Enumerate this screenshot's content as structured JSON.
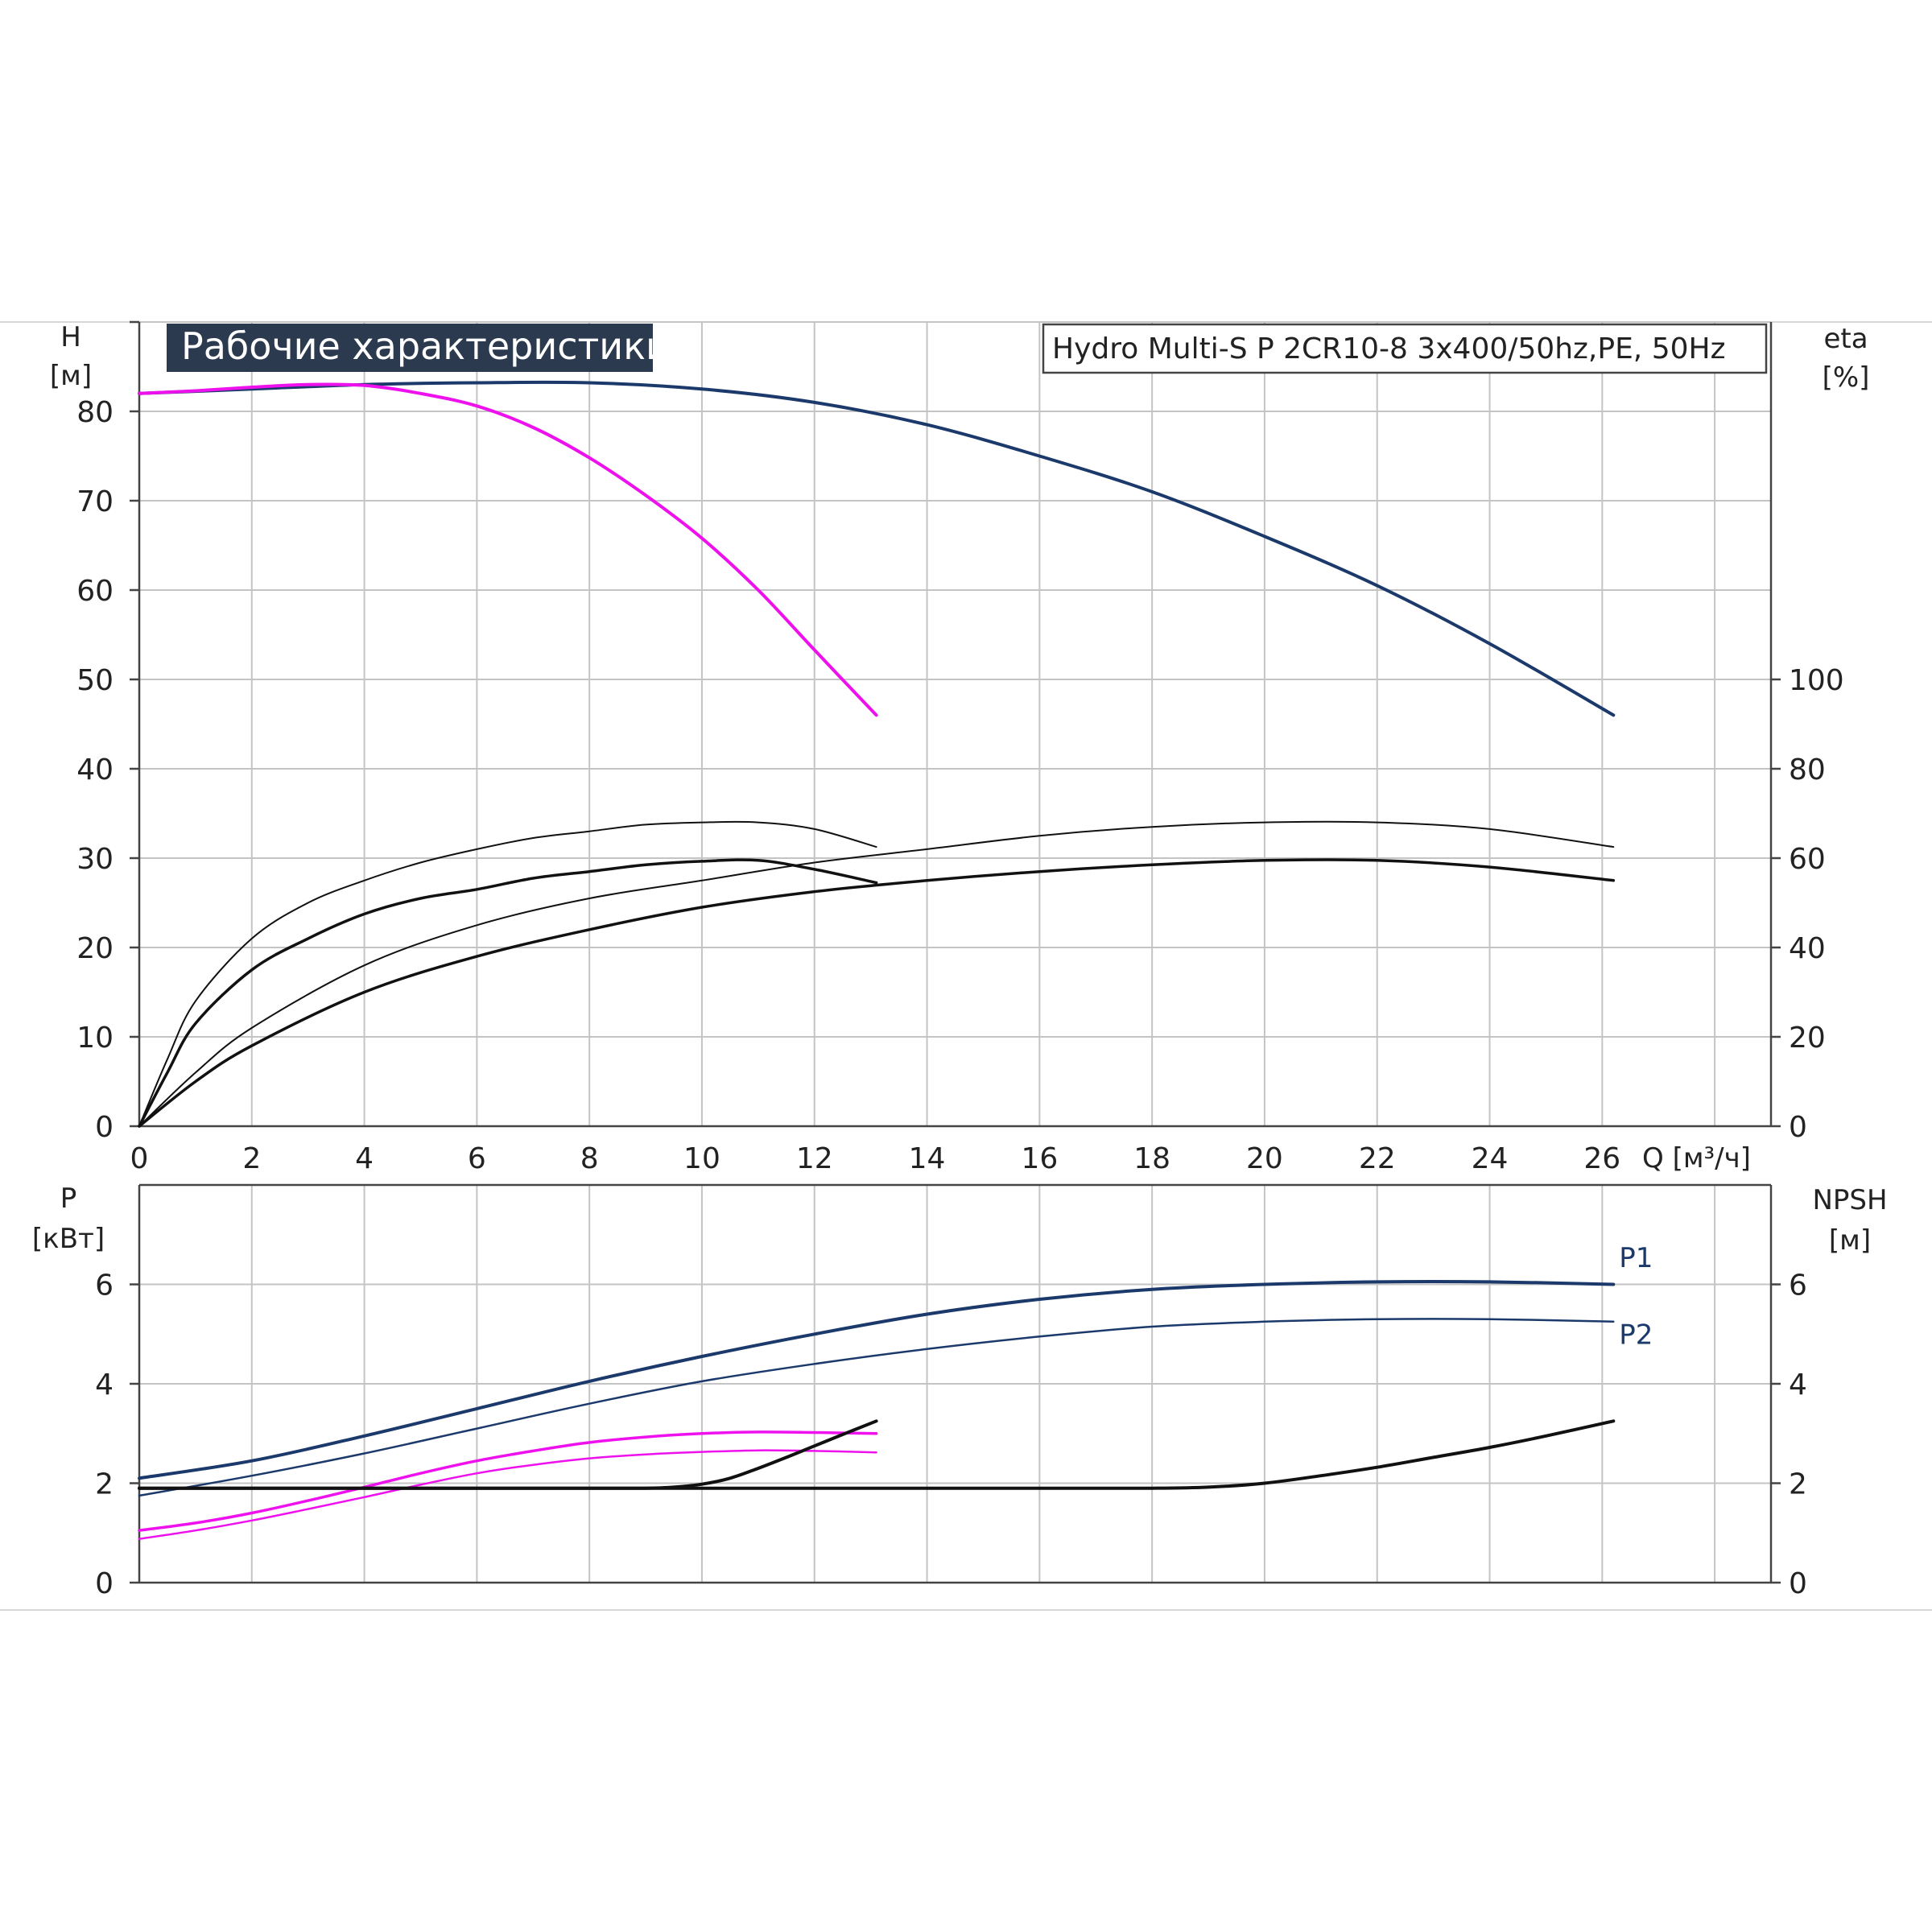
{
  "chart_data": [
    {
      "type": "line",
      "title": "Рабочие характеристики",
      "subtitle": "Hydro Multi-S P 2CR10-8 3x400/50hz,PE, 50Hz",
      "x_axis": {
        "label": "Q [м³/ч]",
        "range": [
          0,
          29
        ],
        "ticks": [
          "0",
          "2",
          "4",
          "6",
          "8",
          "10",
          "12",
          "14",
          "16",
          "18",
          "20",
          "22",
          "24",
          "26"
        ]
      },
      "y_left": {
        "label_line1": "H",
        "label_line2": "[м]",
        "range": [
          0,
          90
        ],
        "ticks": [
          "0",
          "10",
          "20",
          "30",
          "40",
          "50",
          "60",
          "70",
          "80"
        ]
      },
      "y_right": {
        "label_line1": "eta",
        "label_line2": "[%]",
        "range": [
          0,
          180
        ],
        "ticks": [
          "0",
          "20",
          "40",
          "60",
          "80",
          "100"
        ]
      },
      "grid": true,
      "series": [
        {
          "axis": "left",
          "color": "#1b3a6b",
          "width": 4,
          "x": [
            0,
            2,
            4,
            6,
            8,
            10,
            12,
            14,
            16,
            18,
            20,
            22,
            24,
            26.2
          ],
          "y": [
            82,
            82.5,
            83,
            83.2,
            83.2,
            82.5,
            81,
            78.5,
            75,
            71,
            66,
            60.5,
            54,
            46
          ]
        },
        {
          "axis": "left",
          "color": "#ee11ee",
          "width": 4,
          "x": [
            0,
            1,
            2,
            3,
            4,
            5,
            6,
            7,
            8,
            9,
            10,
            11,
            12,
            13.1
          ],
          "y": [
            82,
            82.3,
            82.7,
            83,
            82.9,
            82,
            80.6,
            78.2,
            74.8,
            70.6,
            65.8,
            60,
            53.3,
            46
          ]
        },
        {
          "axis": "right",
          "color": "#111111",
          "width": 2,
          "x": [
            0,
            0.5,
            1,
            2,
            3,
            4,
            5,
            6,
            7,
            8,
            9,
            10,
            11,
            12,
            13.1
          ],
          "y": [
            0,
            15,
            28,
            42,
            50,
            55,
            59,
            62,
            64.5,
            66,
            67.5,
            68,
            68,
            66.5,
            62.5
          ]
        },
        {
          "axis": "right",
          "color": "#111111",
          "width": 3.5,
          "x": [
            0,
            0.5,
            1,
            2,
            3,
            4,
            5,
            6,
            7,
            8,
            9,
            10,
            11,
            12,
            13.1
          ],
          "y": [
            0,
            12,
            23,
            35,
            42,
            47.5,
            51,
            53,
            55.5,
            57,
            58.5,
            59.3,
            59.5,
            57.5,
            54.5
          ]
        },
        {
          "axis": "right",
          "color": "#111111",
          "width": 2,
          "x": [
            0,
            1,
            2,
            4,
            6,
            8,
            10,
            12,
            14,
            16,
            18,
            20,
            22,
            24,
            26.2
          ],
          "y": [
            0,
            12,
            22,
            36,
            45,
            51,
            55,
            59,
            62,
            65,
            67,
            68,
            68,
            66.5,
            62.5
          ]
        },
        {
          "axis": "right",
          "color": "#111111",
          "width": 3.5,
          "x": [
            0,
            1,
            2,
            4,
            6,
            8,
            10,
            12,
            14,
            16,
            18,
            20,
            22,
            24,
            26.2
          ],
          "y": [
            0,
            10,
            18,
            30,
            38,
            44,
            49,
            52.5,
            55,
            57,
            58.5,
            59.5,
            59.5,
            58,
            55
          ]
        }
      ]
    },
    {
      "type": "line",
      "x_axis": {
        "range": [
          0,
          29
        ]
      },
      "y_left": {
        "label_line1": "P",
        "label_line2": "[кВт]",
        "range": [
          0,
          8
        ],
        "ticks": [
          "0",
          "2",
          "4",
          "6"
        ]
      },
      "y_right": {
        "label_line1": "NPSH",
        "label_line2": "[м]",
        "range": [
          0,
          8
        ],
        "ticks": [
          "0",
          "2",
          "4",
          "6"
        ]
      },
      "grid": true,
      "annotations": [
        {
          "text": "P1",
          "x": 26.3,
          "y": 6.35
        },
        {
          "text": "P2",
          "x": 26.3,
          "y": 4.8
        }
      ],
      "series": [
        {
          "name": "P1",
          "axis": "left",
          "color": "#1b3a6b",
          "width": 4,
          "x": [
            0,
            2,
            4,
            6,
            8,
            10,
            12,
            14,
            16,
            18,
            20,
            22,
            24,
            26.2
          ],
          "y": [
            2.1,
            2.45,
            2.95,
            3.5,
            4.05,
            4.55,
            5.0,
            5.4,
            5.7,
            5.9,
            6.0,
            6.05,
            6.05,
            6.0
          ]
        },
        {
          "name": "P2",
          "axis": "left",
          "color": "#1b3a6b",
          "width": 2.5,
          "x": [
            0,
            2,
            4,
            6,
            8,
            10,
            12,
            14,
            16,
            18,
            20,
            22,
            24,
            26.2
          ],
          "y": [
            1.75,
            2.15,
            2.6,
            3.1,
            3.6,
            4.05,
            4.4,
            4.7,
            4.95,
            5.15,
            5.25,
            5.3,
            5.3,
            5.25
          ]
        },
        {
          "axis": "left",
          "color": "#ee11ee",
          "width": 3.5,
          "x": [
            0,
            1,
            2,
            3,
            4,
            5,
            6,
            7,
            8,
            9,
            10,
            11,
            12,
            13.1
          ],
          "y": [
            1.05,
            1.2,
            1.4,
            1.65,
            1.92,
            2.2,
            2.45,
            2.65,
            2.82,
            2.93,
            3.0,
            3.03,
            3.02,
            3.0
          ]
        },
        {
          "axis": "left",
          "color": "#ee11ee",
          "width": 2.5,
          "x": [
            0,
            1,
            2,
            3,
            4,
            5,
            6,
            7,
            8,
            9,
            10,
            11,
            12,
            13.1
          ],
          "y": [
            0.88,
            1.05,
            1.25,
            1.48,
            1.72,
            1.97,
            2.2,
            2.37,
            2.5,
            2.58,
            2.63,
            2.66,
            2.65,
            2.62
          ]
        },
        {
          "axis": "right",
          "color": "#111111",
          "width": 4,
          "x": [
            0,
            2,
            4,
            6,
            8,
            9,
            9.5,
            10,
            10.5,
            11,
            11.5,
            12,
            12.5,
            13.1
          ],
          "y": [
            1.9,
            1.9,
            1.9,
            1.9,
            1.9,
            1.9,
            1.92,
            1.98,
            2.1,
            2.3,
            2.52,
            2.75,
            2.98,
            3.25
          ]
        },
        {
          "axis": "right",
          "color": "#111111",
          "width": 4,
          "x": [
            0,
            4,
            8,
            12,
            16,
            18,
            19,
            20,
            21,
            22,
            23,
            24,
            25,
            26.2
          ],
          "y": [
            1.9,
            1.9,
            1.9,
            1.9,
            1.9,
            1.9,
            1.92,
            2.0,
            2.15,
            2.32,
            2.52,
            2.72,
            2.95,
            3.25
          ]
        }
      ]
    }
  ]
}
